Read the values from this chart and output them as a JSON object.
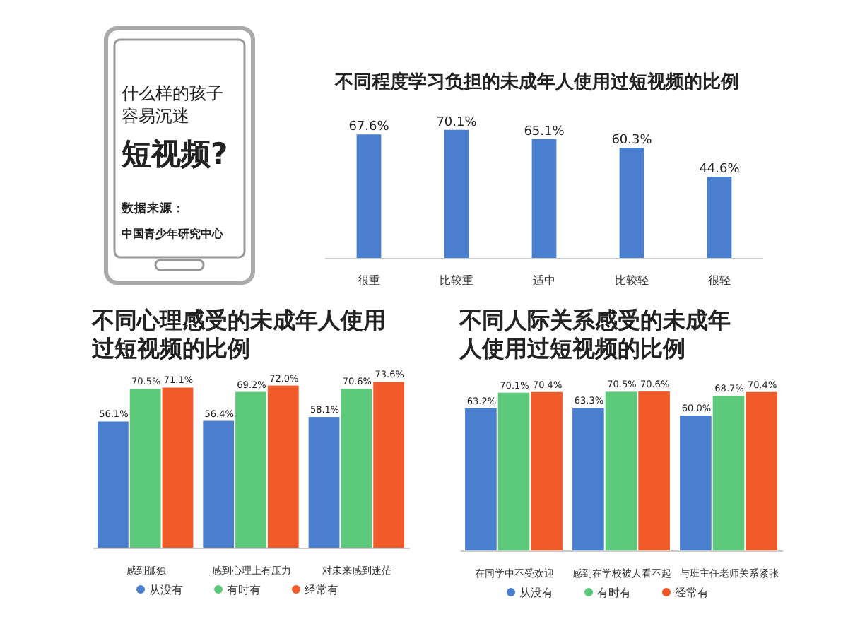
{
  "chart_data": [
    {
      "type": "other",
      "annotations": [
        "什么样的孩子",
        "容易沉迷",
        "短视频?",
        "数据来源：",
        "中国青少年研究中心"
      ]
    },
    {
      "type": "bar",
      "title": "不同程度学习负担的未成年人使用过短视频的比例",
      "categories": [
        "很重",
        "比较重",
        "适中",
        "比较轻",
        "很轻"
      ],
      "values": [
        67.6,
        70.1,
        65.1,
        60.3,
        44.6
      ],
      "value_labels": [
        "67.6%",
        "70.1%",
        "65.1%",
        "60.3%",
        "44.6%"
      ],
      "color": "#4a7fcf"
    },
    {
      "type": "bar",
      "title": "不同心理感受的未成年人使用过短视频的比例",
      "categories": [
        "感到孤独",
        "感到心理上有压力",
        "对未来感到迷茫"
      ],
      "series": [
        {
          "name": "从没有",
          "color": "#4a7fcf",
          "values": [
            56.1,
            56.4,
            58.1
          ],
          "value_labels": [
            "56.1%",
            "56.4%",
            "58.1%"
          ]
        },
        {
          "name": "有时有",
          "color": "#5cc97b",
          "values": [
            70.5,
            69.2,
            70.6
          ],
          "value_labels": [
            "70.5%",
            "69.2%",
            "70.6%"
          ]
        },
        {
          "name": "经常有",
          "color": "#f15a29",
          "values": [
            71.1,
            72.0,
            73.6
          ],
          "value_labels": [
            "71.1%",
            "72.0%",
            "73.6%"
          ]
        }
      ],
      "legend": "bottom"
    },
    {
      "type": "bar",
      "title": "不同人际关系感受的未成年人使用过短视频的比例",
      "categories": [
        "在同学中不受欢迎",
        "感到在学校被人看不起",
        "与班主任老师关系紧张"
      ],
      "series": [
        {
          "name": "从没有",
          "color": "#4a7fcf",
          "values": [
            63.2,
            63.3,
            60.0
          ],
          "value_labels": [
            "63.2%",
            "63.3%",
            "60.0%"
          ]
        },
        {
          "name": "有时有",
          "color": "#5cc97b",
          "values": [
            70.1,
            70.5,
            68.7
          ],
          "value_labels": [
            "70.1%",
            "70.5%",
            "68.7%"
          ]
        },
        {
          "name": "经常有",
          "color": "#f15a29",
          "values": [
            70.4,
            70.6,
            70.4
          ],
          "value_labels": [
            "70.4%",
            "70.6%",
            "70.4%"
          ]
        }
      ],
      "legend": "bottom"
    }
  ]
}
